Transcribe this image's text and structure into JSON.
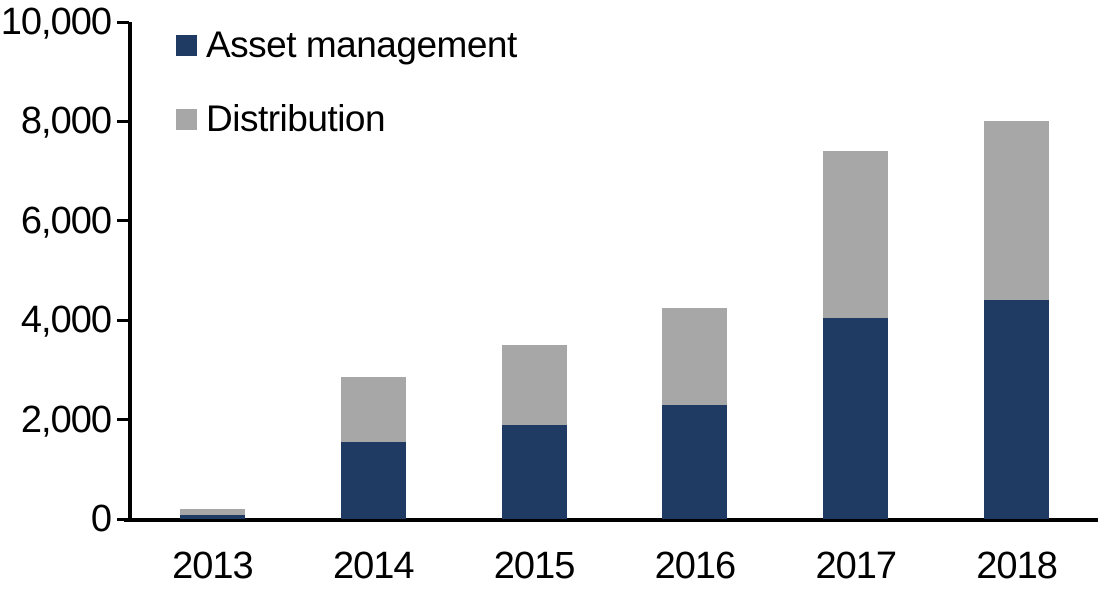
{
  "chart_data": {
    "type": "bar",
    "stacked": true,
    "title": "",
    "categories": [
      "2013",
      "2014",
      "2015",
      "2016",
      "2017",
      "2018"
    ],
    "series": [
      {
        "name": "Asset management",
        "color": "#1f3a63",
        "values": [
          80,
          1550,
          1900,
          2300,
          4050,
          4400
        ]
      },
      {
        "name": "Distribution",
        "color": "#a7a7a7",
        "values": [
          120,
          1300,
          1600,
          1950,
          3350,
          3600
        ]
      }
    ],
    "stack_totals": [
      200,
      2850,
      3500,
      4250,
      7400,
      8000
    ],
    "xlabel": "",
    "ylabel": "",
    "ylim": [
      0,
      10000
    ],
    "ytick_interval": 2000,
    "ytick_labels": [
      "0",
      "2,000",
      "4,000",
      "6,000",
      "8,000",
      "10,000"
    ],
    "grid": false,
    "legend_position": "top-left-inside",
    "axis_color": "#000000",
    "background": "#ffffff"
  }
}
